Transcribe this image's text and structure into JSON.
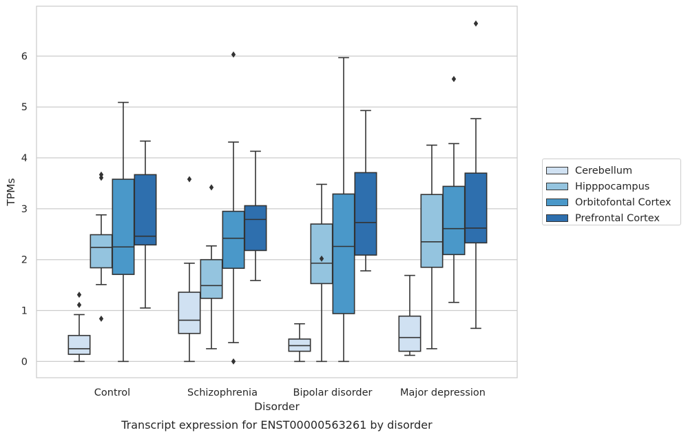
{
  "chart_data": {
    "type": "boxplot",
    "title": "Transcript expression for ENST00000563261 by disorder",
    "xlabel": "Disorder",
    "ylabel": "TPMs",
    "ylim": [
      -0.32,
      6.98
    ],
    "yticks": [
      0,
      1,
      2,
      3,
      4,
      5,
      6
    ],
    "grid": "horizontal",
    "legend_position": "right",
    "categories": [
      "Control",
      "Schizophrenia",
      "Bipolar disorder",
      "Major depression"
    ],
    "series": [
      {
        "name": "Cerebellum",
        "color": "#d0e1f2",
        "boxes": [
          {
            "whislo": 0.0,
            "q1": 0.14,
            "med": 0.25,
            "q3": 0.51,
            "whishi": 0.92,
            "fliers": [
              1.11,
              1.31
            ]
          },
          {
            "whislo": 0.0,
            "q1": 0.55,
            "med": 0.81,
            "q3": 1.36,
            "whishi": 1.93,
            "fliers": [
              3.58
            ]
          },
          {
            "whislo": 0.0,
            "q1": 0.2,
            "med": 0.31,
            "q3": 0.44,
            "whishi": 0.74,
            "fliers": []
          },
          {
            "whislo": 0.12,
            "q1": 0.2,
            "med": 0.47,
            "q3": 0.89,
            "whishi": 1.69,
            "fliers": []
          }
        ]
      },
      {
        "name": "Hipppocampus",
        "color": "#94c4df",
        "boxes": [
          {
            "whislo": 1.51,
            "q1": 1.84,
            "med": 2.24,
            "q3": 2.49,
            "whishi": 2.88,
            "fliers": [
              0.84,
              3.61,
              3.67
            ]
          },
          {
            "whislo": 0.25,
            "q1": 1.24,
            "med": 1.49,
            "q3": 2.0,
            "whishi": 2.27,
            "fliers": [
              3.42
            ]
          },
          {
            "whislo": 0.0,
            "q1": 1.53,
            "med": 1.93,
            "q3": 2.7,
            "whishi": 3.48,
            "fliers": [
              2.02
            ]
          },
          {
            "whislo": 0.25,
            "q1": 1.85,
            "med": 2.35,
            "q3": 3.28,
            "whishi": 4.25,
            "fliers": []
          }
        ]
      },
      {
        "name": "Orbitofontal Cortex",
        "color": "#4a98c9",
        "boxes": [
          {
            "whislo": 0.0,
            "q1": 1.71,
            "med": 2.25,
            "q3": 3.58,
            "whishi": 5.09,
            "fliers": []
          },
          {
            "whislo": 0.37,
            "q1": 1.83,
            "med": 2.42,
            "q3": 2.95,
            "whishi": 4.31,
            "fliers": [
              6.03,
              0.0
            ]
          },
          {
            "whislo": 0.0,
            "q1": 0.94,
            "med": 2.26,
            "q3": 3.29,
            "whishi": 5.97,
            "fliers": []
          },
          {
            "whislo": 1.16,
            "q1": 2.1,
            "med": 2.61,
            "q3": 3.44,
            "whishi": 4.28,
            "fliers": [
              5.55
            ]
          }
        ]
      },
      {
        "name": "Prefrontal Cortex",
        "color": "#2e6fae",
        "boxes": [
          {
            "whislo": 1.05,
            "q1": 2.29,
            "med": 2.46,
            "q3": 3.67,
            "whishi": 4.33,
            "fliers": []
          },
          {
            "whislo": 1.59,
            "q1": 2.18,
            "med": 2.79,
            "q3": 3.06,
            "whishi": 4.13,
            "fliers": []
          },
          {
            "whislo": 1.78,
            "q1": 2.09,
            "med": 2.73,
            "q3": 3.71,
            "whishi": 4.93,
            "fliers": []
          },
          {
            "whislo": 0.65,
            "q1": 2.33,
            "med": 2.62,
            "q3": 3.7,
            "whishi": 4.77,
            "fliers": [
              6.64
            ]
          }
        ]
      }
    ]
  }
}
